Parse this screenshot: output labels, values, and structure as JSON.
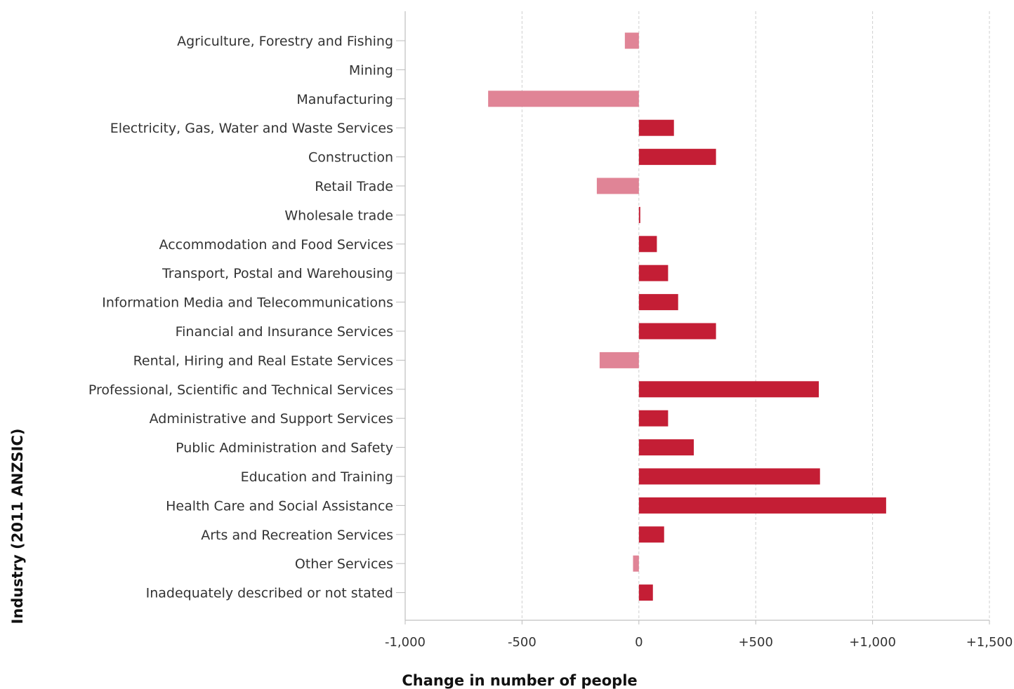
{
  "chart_data": {
    "type": "bar",
    "orientation": "horizontal",
    "xlabel": "Change in number of people",
    "ylabel": "Industry (2011 ANZSIC)",
    "xlim": [
      -1000,
      1500
    ],
    "xticks": [
      {
        "value": -1000,
        "label": "-1,000"
      },
      {
        "value": -500,
        "label": "-500"
      },
      {
        "value": 0,
        "label": "0"
      },
      {
        "value": 500,
        "label": "+500"
      },
      {
        "value": 1000,
        "label": "+1,000"
      },
      {
        "value": 1500,
        "label": "+1,500"
      }
    ],
    "grid": "vertical-dashed",
    "colors": {
      "positive": "#c41e35",
      "negative": "#e08496"
    },
    "categories": [
      "Agriculture, Forestry and Fishing",
      "Mining",
      "Manufacturing",
      "Electricity, Gas, Water and Waste Services",
      "Construction",
      "Retail Trade",
      "Wholesale trade",
      "Accommodation and Food Services",
      "Transport, Postal and Warehousing",
      "Information Media and Telecommunications",
      "Financial and Insurance Services",
      "Rental, Hiring and Real Estate Services",
      "Professional, Scientific and Technical Services",
      "Administrative and Support Services",
      "Public Administration and Safety",
      "Education and Training",
      "Health Care and Social Assistance",
      "Arts and Recreation Services",
      "Other Services",
      "Inadequately described or not stated"
    ],
    "values": [
      -60,
      0,
      -645,
      150,
      330,
      -180,
      5,
      77,
      125,
      168,
      330,
      -168,
      770,
      125,
      235,
      775,
      1058,
      108,
      -25,
      60
    ]
  }
}
